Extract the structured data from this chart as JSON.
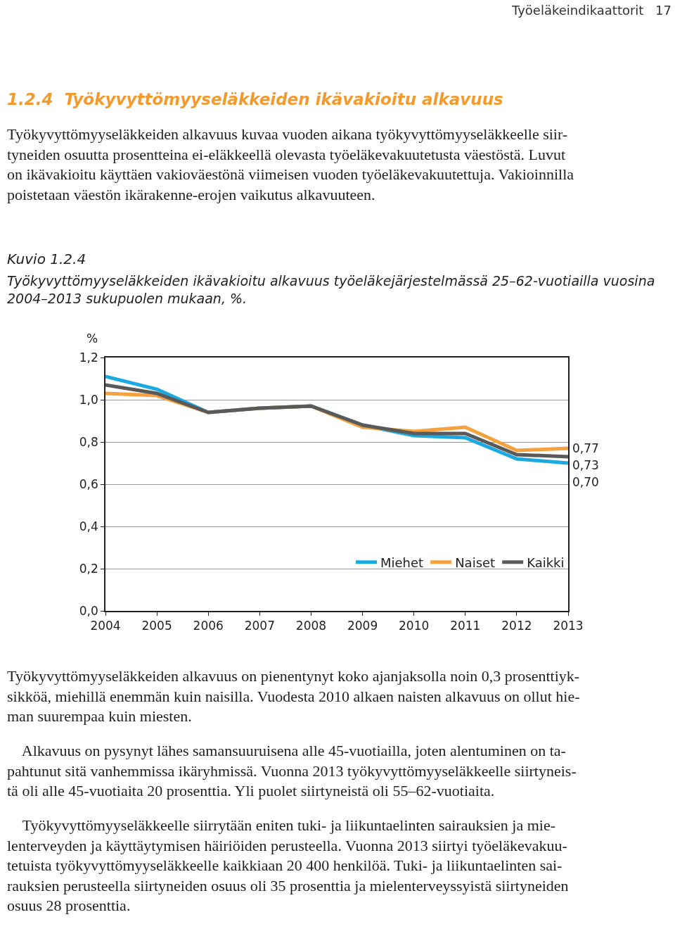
{
  "chart_data": {
    "type": "line",
    "title": "Kuvio 1.2.4",
    "subtitle": "Työkyvyttömyyseläkkeiden ikävakioitu alkavuus työeläkejärjestelmässä 25–62-vuotiailla vuosina\n2004–2013 sukupuolen mukaan, %.",
    "ylabel": "%",
    "annotations": [
      "Työeläkeindikaattorit",
      "17",
      "1.2.4  Työkyvyttömyyseläkkeiden ikävakioitu alkavuus",
      "Työkyvyttömyyseläkkeiden alkavuus kuvaa vuoden aikana työkyvyttömyyseläkkeelle siir-\ntyneiden osuutta prosentteina ei-eläkkeellä olevasta työeläkevakuutetusta väestöstä. Luvut\non ikävakioitu käyttäen vakioväestönä viimeisen vuoden työeläkevakuutettuja. Vakioinnilla\npoistetaan väestön ikärakenne-erojen vaikutus alkavuuteen.",
      "Työkyvyttömyyseläkkeiden alkavuus on pienentynyt koko ajanjaksolla noin 0,3 prosenttiyk-\nsikköä, miehillä enemmän kuin naisilla. Vuodesta 2010 alkaen naisten alkavuus on ollut hie-\nman suurempaa kuin miesten.",
      "    Alkavuus on pysynyt lähes samansuuruisena alle 45-vuotiailla, joten alentuminen on ta-\npahtunut sitä vanhemmissa ikäryhmissä. Vuonna 2013 työkyvyttömyyseläkkeelle siirtyneis-\ntä oli alle 45-vuotiaita 20 prosenttia. Yli puolet siirtyneistä oli 55–62-vuotiaita.",
      "    Työkyvyttömyyseläkkeelle siirrytään eniten tuki- ja liikuntaelinten sairauksien ja mie-\nlenterveyden ja käyttäytymisen häiriöiden perusteella. Vuonna 2013 siirtyi työeläkevakuu-\ntetuista työkyvyttömyyseläkkeelle kaikkiaan 20 400 henkilöä. Tuki- ja liikuntaelinten sai-\nrauksien perusteella siirtyneiden osuus oli 35 prosenttia ja mielenterveyssyistä siirtyneiden\nosuus 28 prosenttia."
    ],
    "x": [
      2004,
      2005,
      2006,
      2007,
      2008,
      2009,
      2010,
      2011,
      2012,
      2013
    ],
    "xlim": [
      2004,
      2013
    ],
    "xticks": [
      2004,
      2005,
      2006,
      2007,
      2008,
      2009,
      2010,
      2011,
      2012,
      2013
    ],
    "ylim": [
      0,
      1.2
    ],
    "yticks": [
      {
        "value": 0,
        "label": "0,0"
      },
      {
        "value": 0.2,
        "label": "0,2"
      },
      {
        "value": 0.4,
        "label": "0,4"
      },
      {
        "value": 0.6,
        "label": "0,6"
      },
      {
        "value": 0.8,
        "label": "0,8"
      },
      {
        "value": 1.0,
        "label": "1,0"
      },
      {
        "value": 1.2,
        "label": "1,2"
      }
    ],
    "grid": "y",
    "legend": "bottom right",
    "marker": "none",
    "line_style": "solid",
    "series": [
      {
        "name": "Miehet",
        "color": "#1ba9e1",
        "values": [
          1.11,
          1.05,
          0.94,
          0.96,
          0.97,
          0.88,
          0.83,
          0.82,
          0.72,
          0.7
        ],
        "value_labels": [
          null,
          null,
          null,
          null,
          null,
          null,
          null,
          null,
          null,
          "0,70"
        ]
      },
      {
        "name": "Naiset",
        "color": "#f5a13d",
        "values": [
          1.03,
          1.02,
          0.94,
          0.96,
          0.97,
          0.87,
          0.85,
          0.87,
          0.76,
          0.77
        ],
        "value_labels": [
          null,
          null,
          null,
          null,
          null,
          null,
          null,
          null,
          null,
          "0,77"
        ]
      },
      {
        "name": "Kaikki",
        "color": "#5a5a5a",
        "values": [
          1.07,
          1.03,
          0.94,
          0.96,
          0.97,
          0.88,
          0.84,
          0.84,
          0.74,
          0.73
        ],
        "value_labels": [
          null,
          null,
          null,
          null,
          null,
          null,
          null,
          null,
          null,
          "0,73"
        ]
      }
    ]
  }
}
